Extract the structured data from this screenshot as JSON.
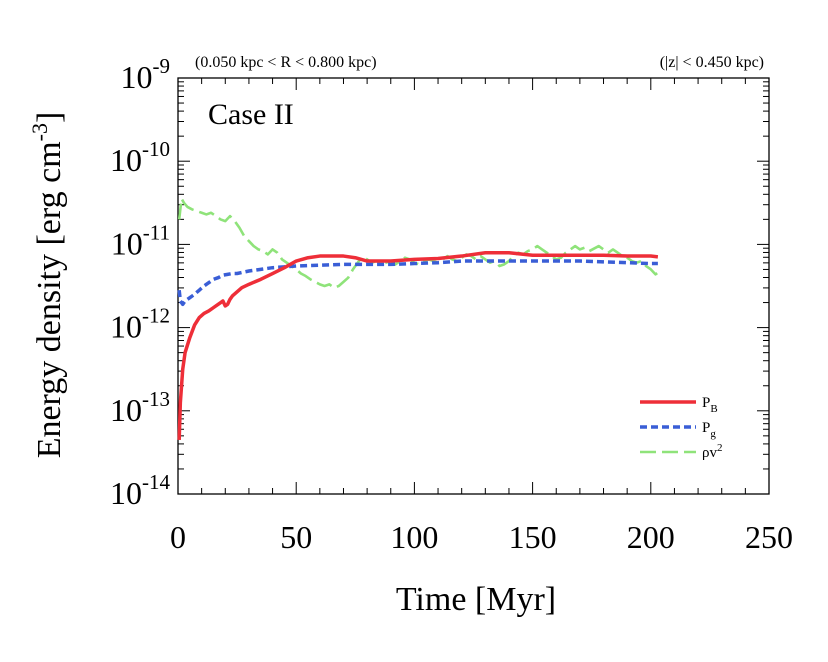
{
  "chart_data": {
    "type": "line",
    "title": "Case II",
    "subtitle_left": "(0.050 kpc < R < 0.800 kpc)",
    "subtitle_right": "(|z| < 0.450 kpc)",
    "xlabel": "Time [Myr]",
    "ylabel": {
      "main": "Energy density [erg cm",
      "sup": "-3",
      "close": "]"
    },
    "xlim": [
      0,
      250
    ],
    "ylim_log10": [
      -14,
      -9
    ],
    "yscale": "log",
    "x_ticks": [
      {
        "value": 0,
        "label": "0"
      },
      {
        "value": 50,
        "label": "50"
      },
      {
        "value": 100,
        "label": "100"
      },
      {
        "value": 150,
        "label": "150"
      },
      {
        "value": 200,
        "label": "200"
      },
      {
        "value": 250,
        "label": "250"
      }
    ],
    "y_ticks": [
      {
        "exp": -9,
        "base": "10",
        "sup": "-9"
      },
      {
        "exp": -10,
        "base": "10",
        "sup": "-10"
      },
      {
        "exp": -11,
        "base": "10",
        "sup": "-11"
      },
      {
        "exp": -12,
        "base": "10",
        "sup": "-12"
      },
      {
        "exp": -13,
        "base": "10",
        "sup": "-13"
      },
      {
        "exp": -14,
        "base": "10",
        "sup": "-14"
      }
    ],
    "legend_position": "lower-right",
    "series": [
      {
        "name": "P_B",
        "label_main": "P",
        "label_sub": "B",
        "label_sup": "",
        "color": "#ee2e38",
        "style": "solid",
        "points": [
          [
            0.5,
            -13.35
          ],
          [
            1,
            -12.9
          ],
          [
            2,
            -12.5
          ],
          [
            3,
            -12.3
          ],
          [
            5,
            -12.12
          ],
          [
            7,
            -11.97
          ],
          [
            9,
            -11.88
          ],
          [
            11,
            -11.83
          ],
          [
            13,
            -11.8
          ],
          [
            15,
            -11.76
          ],
          [
            17,
            -11.72
          ],
          [
            18,
            -11.7
          ],
          [
            19,
            -11.68
          ],
          [
            20,
            -11.74
          ],
          [
            21,
            -11.72
          ],
          [
            22,
            -11.66
          ],
          [
            23,
            -11.62
          ],
          [
            25,
            -11.57
          ],
          [
            27,
            -11.52
          ],
          [
            30,
            -11.48
          ],
          [
            35,
            -11.42
          ],
          [
            40,
            -11.35
          ],
          [
            45,
            -11.28
          ],
          [
            50,
            -11.2
          ],
          [
            55,
            -11.16
          ],
          [
            60,
            -11.14
          ],
          [
            65,
            -11.14
          ],
          [
            70,
            -11.14
          ],
          [
            75,
            -11.16
          ],
          [
            80,
            -11.2
          ],
          [
            90,
            -11.2
          ],
          [
            100,
            -11.18
          ],
          [
            110,
            -11.17
          ],
          [
            120,
            -11.14
          ],
          [
            130,
            -11.1
          ],
          [
            140,
            -11.1
          ],
          [
            150,
            -11.13
          ],
          [
            160,
            -11.13
          ],
          [
            170,
            -11.13
          ],
          [
            180,
            -11.13
          ],
          [
            190,
            -11.14
          ],
          [
            200,
            -11.14
          ],
          [
            203,
            -11.15
          ]
        ]
      },
      {
        "name": "P_g",
        "label_main": "P",
        "label_sub": "g",
        "label_sup": "",
        "color": "#3a5ed6",
        "style": "dashed",
        "points": [
          [
            0.5,
            -11.55
          ],
          [
            1,
            -11.68
          ],
          [
            2,
            -11.72
          ],
          [
            3,
            -11.68
          ],
          [
            5,
            -11.64
          ],
          [
            7,
            -11.6
          ],
          [
            9,
            -11.55
          ],
          [
            11,
            -11.5
          ],
          [
            13,
            -11.46
          ],
          [
            15,
            -11.42
          ],
          [
            17,
            -11.4
          ],
          [
            19,
            -11.37
          ],
          [
            21,
            -11.36
          ],
          [
            23,
            -11.35
          ],
          [
            25,
            -11.35
          ],
          [
            30,
            -11.32
          ],
          [
            35,
            -11.3
          ],
          [
            40,
            -11.28
          ],
          [
            45,
            -11.27
          ],
          [
            50,
            -11.26
          ],
          [
            60,
            -11.25
          ],
          [
            70,
            -11.24
          ],
          [
            80,
            -11.24
          ],
          [
            90,
            -11.24
          ],
          [
            100,
            -11.23
          ],
          [
            110,
            -11.22
          ],
          [
            120,
            -11.2
          ],
          [
            130,
            -11.2
          ],
          [
            140,
            -11.2
          ],
          [
            150,
            -11.2
          ],
          [
            160,
            -11.2
          ],
          [
            170,
            -11.2
          ],
          [
            180,
            -11.21
          ],
          [
            190,
            -11.22
          ],
          [
            200,
            -11.23
          ],
          [
            203,
            -11.23
          ]
        ]
      },
      {
        "name": "rho v^2",
        "label_main": "ρv",
        "label_sub": "",
        "label_sup": "2",
        "color": "#8fe37a",
        "style": "longdash",
        "points": [
          [
            0.5,
            -10.7
          ],
          [
            1.5,
            -10.45
          ],
          [
            2.5,
            -10.5
          ],
          [
            4,
            -10.55
          ],
          [
            6,
            -10.58
          ],
          [
            8,
            -10.6
          ],
          [
            10,
            -10.62
          ],
          [
            12,
            -10.64
          ],
          [
            14,
            -10.62
          ],
          [
            16,
            -10.66
          ],
          [
            18,
            -10.7
          ],
          [
            20,
            -10.72
          ],
          [
            22,
            -10.66
          ],
          [
            24,
            -10.72
          ],
          [
            26,
            -10.8
          ],
          [
            28,
            -10.9
          ],
          [
            30,
            -10.96
          ],
          [
            32,
            -11.02
          ],
          [
            34,
            -11.06
          ],
          [
            36,
            -11.08
          ],
          [
            38,
            -11.12
          ],
          [
            40,
            -11.06
          ],
          [
            42,
            -11.1
          ],
          [
            44,
            -11.18
          ],
          [
            46,
            -11.22
          ],
          [
            48,
            -11.26
          ],
          [
            50,
            -11.3
          ],
          [
            52,
            -11.35
          ],
          [
            54,
            -11.38
          ],
          [
            56,
            -11.42
          ],
          [
            58,
            -11.45
          ],
          [
            60,
            -11.48
          ],
          [
            62,
            -11.5
          ],
          [
            64,
            -11.48
          ],
          [
            66,
            -11.52
          ],
          [
            68,
            -11.5
          ],
          [
            70,
            -11.45
          ],
          [
            72,
            -11.4
          ],
          [
            74,
            -11.3
          ],
          [
            76,
            -11.22
          ],
          [
            78,
            -11.15
          ],
          [
            80,
            -11.18
          ],
          [
            82,
            -11.22
          ],
          [
            84,
            -11.2
          ],
          [
            86,
            -11.24
          ],
          [
            88,
            -11.22
          ],
          [
            90,
            -11.2
          ],
          [
            92,
            -11.24
          ],
          [
            94,
            -11.2
          ],
          [
            96,
            -11.16
          ],
          [
            98,
            -11.18
          ],
          [
            100,
            -11.22
          ],
          [
            102,
            -11.24
          ],
          [
            104,
            -11.2
          ],
          [
            106,
            -11.18
          ],
          [
            108,
            -11.2
          ],
          [
            110,
            -11.22
          ],
          [
            112,
            -11.18
          ],
          [
            114,
            -11.14
          ],
          [
            116,
            -11.18
          ],
          [
            118,
            -11.2
          ],
          [
            120,
            -11.16
          ],
          [
            122,
            -11.12
          ],
          [
            124,
            -11.14
          ],
          [
            126,
            -11.18
          ],
          [
            128,
            -11.14
          ],
          [
            130,
            -11.18
          ],
          [
            132,
            -11.22
          ],
          [
            134,
            -11.2
          ],
          [
            136,
            -11.26
          ],
          [
            138,
            -11.24
          ],
          [
            140,
            -11.2
          ],
          [
            142,
            -11.14
          ],
          [
            144,
            -11.1
          ],
          [
            146,
            -11.12
          ],
          [
            148,
            -11.08
          ],
          [
            150,
            -11.06
          ],
          [
            152,
            -11.02
          ],
          [
            154,
            -11.06
          ],
          [
            156,
            -11.1
          ],
          [
            158,
            -11.14
          ],
          [
            160,
            -11.18
          ],
          [
            162,
            -11.16
          ],
          [
            164,
            -11.1
          ],
          [
            166,
            -11.06
          ],
          [
            168,
            -11.02
          ],
          [
            170,
            -11.06
          ],
          [
            172,
            -11.04
          ],
          [
            174,
            -11.08
          ],
          [
            176,
            -11.05
          ],
          [
            178,
            -11.02
          ],
          [
            180,
            -11.06
          ],
          [
            182,
            -11.1
          ],
          [
            184,
            -11.06
          ],
          [
            186,
            -11.1
          ],
          [
            188,
            -11.14
          ],
          [
            190,
            -11.16
          ],
          [
            192,
            -11.2
          ],
          [
            194,
            -11.22
          ],
          [
            196,
            -11.2
          ],
          [
            198,
            -11.26
          ],
          [
            200,
            -11.3
          ],
          [
            202,
            -11.36
          ],
          [
            203,
            -11.34
          ]
        ]
      }
    ]
  }
}
